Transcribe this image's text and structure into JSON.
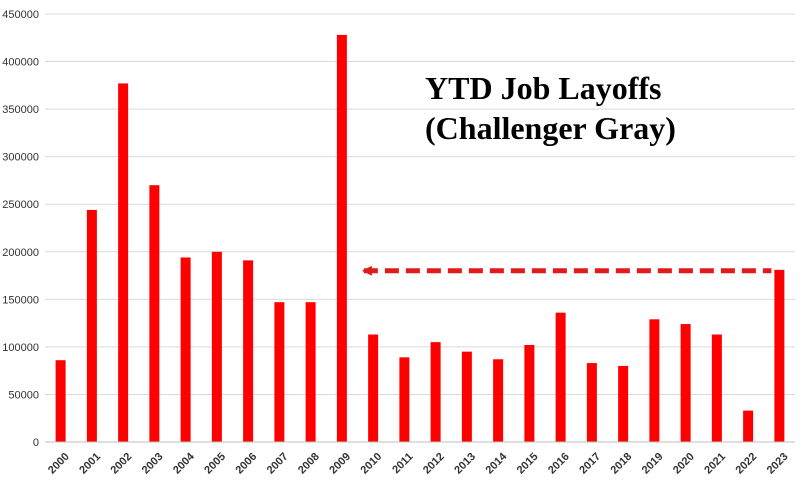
{
  "chart_data": {
    "type": "bar",
    "title_lines": [
      "YTD Job Layoffs",
      "(Challenger Gray)"
    ],
    "xlabel": "",
    "ylabel": "",
    "ylim": [
      0,
      450000
    ],
    "yticks": [
      0,
      50000,
      100000,
      150000,
      200000,
      250000,
      300000,
      350000,
      400000,
      450000
    ],
    "grid": true,
    "legend": "none",
    "bar_color": "#ff0000",
    "annotation": {
      "type": "dashed-arrow",
      "color": "#e01b1b",
      "value": 180000,
      "from_category": "2023",
      "to_category": "2009"
    },
    "categories": [
      "2000",
      "2001",
      "2002",
      "2003",
      "2004",
      "2005",
      "2006",
      "2007",
      "2008",
      "2009",
      "2010",
      "2011",
      "2012",
      "2013",
      "2014",
      "2015",
      "2016",
      "2017",
      "2018",
      "2019",
      "2020",
      "2021",
      "2022",
      "2023"
    ],
    "values": [
      86000,
      244000,
      377000,
      270000,
      194000,
      200000,
      191000,
      147000,
      147000,
      428000,
      113000,
      89000,
      105000,
      95000,
      87000,
      102000,
      136000,
      83000,
      80000,
      129000,
      124000,
      113000,
      33000,
      181000
    ]
  }
}
